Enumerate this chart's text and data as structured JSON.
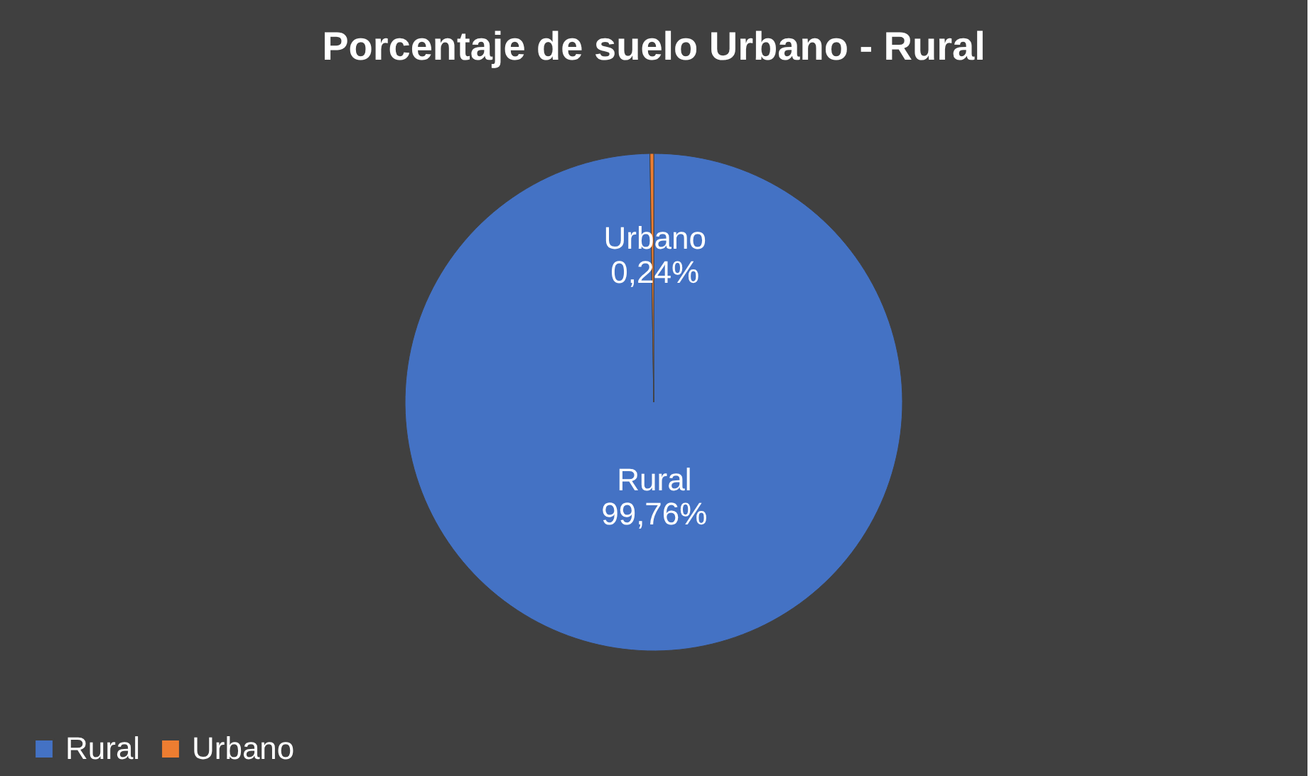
{
  "chart_data": {
    "type": "pie",
    "title": "Porcentaje de suelo Urbano - Rural",
    "categories": [
      "Rural",
      "Urbano"
    ],
    "values": [
      99.76,
      0.24
    ],
    "colors": [
      "#4472c4",
      "#ed7d31"
    ],
    "value_labels": [
      "99,76%",
      "0,24%"
    ],
    "legend": "bottom"
  }
}
